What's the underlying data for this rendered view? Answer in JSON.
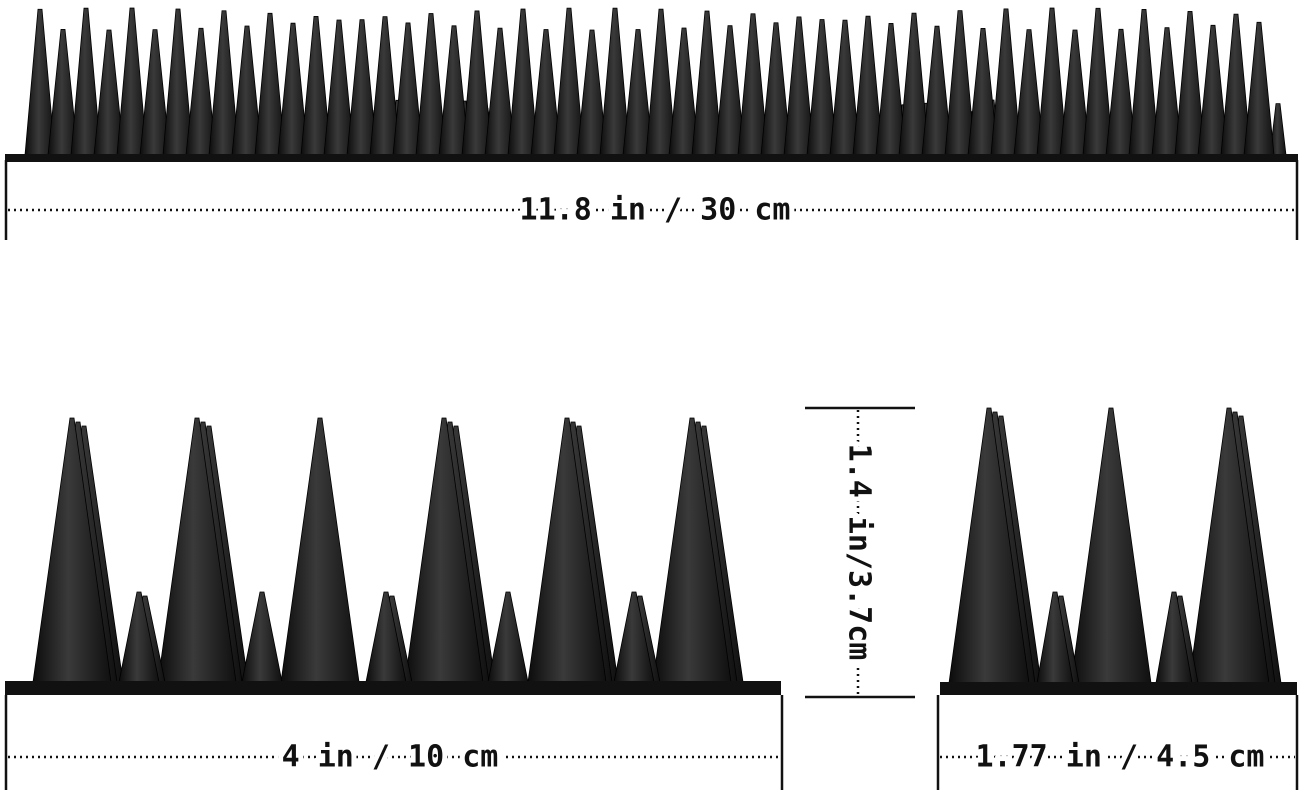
{
  "dimensions": {
    "length": "11.8 in / 30 cm",
    "section_length": "4 in / 10 cm",
    "height": "1.4 in/3.7cm",
    "width": "1.77 in / 4.5 cm"
  }
}
